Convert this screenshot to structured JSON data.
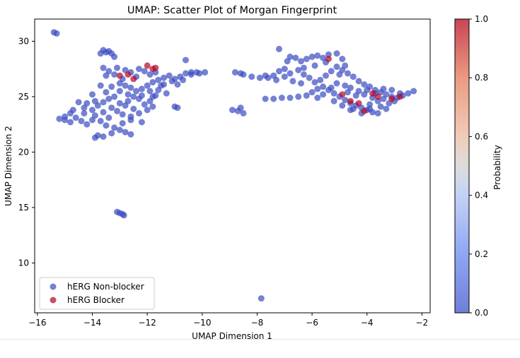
{
  "chart_data": {
    "type": "scatter",
    "title": "UMAP: Scatter Plot of Morgan Fingerprint",
    "xlabel": "UMAP Dimension 1",
    "ylabel": "UMAP Dimension 2",
    "xlim": [
      -16.1,
      -1.7
    ],
    "ylim": [
      5.5,
      32.0
    ],
    "x_ticks": [
      -16,
      -14,
      -12,
      -10,
      -8,
      -6,
      -4,
      -2
    ],
    "x_tick_labels": [
      "−16",
      "−14",
      "−12",
      "−10",
      "−8",
      "−6",
      "−4",
      "−2"
    ],
    "y_ticks": [
      10,
      15,
      20,
      25,
      30
    ],
    "y_tick_labels": [
      "10",
      "15",
      "20",
      "25",
      "30"
    ],
    "grid": false,
    "legend": {
      "position": "lower-left",
      "entries": [
        {
          "label": "hERG Non-blocker",
          "color": "#3b4cc0"
        },
        {
          "label": "hERG Blocker",
          "color": "#b40426"
        }
      ]
    },
    "colorbar": {
      "label": "Probability",
      "range": [
        0.0,
        1.0
      ],
      "ticks": [
        "0.0",
        "0.2",
        "0.4",
        "0.6",
        "0.8",
        "1.0"
      ],
      "colormap": "coolwarm"
    },
    "series": [
      {
        "name": "hERG Non-blocker",
        "color": "#3b4cc0",
        "points": [
          [
            -15.4,
            30.8
          ],
          [
            -15.3,
            30.7
          ],
          [
            -7.85,
            6.8
          ],
          [
            -13.1,
            14.6
          ],
          [
            -13.0,
            14.5
          ],
          [
            -12.9,
            14.4
          ],
          [
            -12.85,
            14.3
          ],
          [
            -10.6,
            28.3
          ],
          [
            -13.6,
            29.2
          ],
          [
            -13.5,
            29.0
          ],
          [
            -13.4,
            29.1
          ],
          [
            -13.3,
            28.9
          ],
          [
            -13.2,
            28.6
          ],
          [
            -13.7,
            28.9
          ],
          [
            -9.9,
            27.2
          ],
          [
            -10.1,
            27.1
          ],
          [
            -10.4,
            27.2
          ],
          [
            -8.8,
            27.2
          ],
          [
            -8.6,
            27.1
          ],
          [
            -8.5,
            27.0
          ],
          [
            -8.2,
            26.8
          ],
          [
            -7.9,
            26.7
          ],
          [
            -7.7,
            26.9
          ],
          [
            -10.9,
            24.0
          ],
          [
            -11.0,
            24.1
          ],
          [
            -8.9,
            23.8
          ],
          [
            -8.7,
            23.7
          ],
          [
            -8.6,
            24.0
          ],
          [
            -8.5,
            23.5
          ],
          [
            -15.2,
            23.0
          ],
          [
            -15.0,
            23.2
          ],
          [
            -14.8,
            23.5
          ],
          [
            -14.6,
            23.1
          ],
          [
            -14.4,
            22.8
          ],
          [
            -14.2,
            22.5
          ],
          [
            -14.0,
            22.9
          ],
          [
            -14.8,
            22.7
          ],
          [
            -14.3,
            23.5
          ],
          [
            -14.0,
            23.8
          ],
          [
            -13.8,
            24.2
          ],
          [
            -13.6,
            24.5
          ],
          [
            -13.9,
            24.6
          ],
          [
            -14.2,
            24.4
          ],
          [
            -14.5,
            24.5
          ],
          [
            -13.4,
            24.8
          ],
          [
            -13.2,
            25.0
          ],
          [
            -13.5,
            25.4
          ],
          [
            -13.3,
            25.9
          ],
          [
            -13.0,
            26.2
          ],
          [
            -12.8,
            26.0
          ],
          [
            -12.6,
            25.8
          ],
          [
            -12.4,
            25.5
          ],
          [
            -12.2,
            25.7
          ],
          [
            -12.0,
            26.0
          ],
          [
            -11.8,
            26.3
          ],
          [
            -11.6,
            26.5
          ],
          [
            -11.4,
            26.7
          ],
          [
            -11.2,
            26.9
          ],
          [
            -11.0,
            26.6
          ],
          [
            -10.8,
            26.8
          ],
          [
            -10.6,
            27.1
          ],
          [
            -11.5,
            26.0
          ],
          [
            -11.3,
            25.3
          ],
          [
            -11.8,
            25.0
          ],
          [
            -12.3,
            24.8
          ],
          [
            -12.7,
            24.6
          ],
          [
            -13.0,
            24.4
          ],
          [
            -13.3,
            24.0
          ],
          [
            -13.6,
            23.6
          ],
          [
            -13.9,
            23.3
          ],
          [
            -13.1,
            23.7
          ],
          [
            -12.9,
            23.4
          ],
          [
            -12.6,
            23.2
          ],
          [
            -12.3,
            23.5
          ],
          [
            -12.0,
            23.8
          ],
          [
            -11.8,
            24.1
          ],
          [
            -12.5,
            23.9
          ],
          [
            -12.8,
            24.2
          ],
          [
            -13.4,
            23.1
          ],
          [
            -13.7,
            22.8
          ],
          [
            -13.5,
            22.4
          ],
          [
            -13.2,
            22.2
          ],
          [
            -13.0,
            22.0
          ],
          [
            -12.8,
            21.8
          ],
          [
            -12.6,
            21.6
          ],
          [
            -13.3,
            21.7
          ],
          [
            -13.6,
            21.4
          ],
          [
            -13.9,
            21.3
          ],
          [
            -13.8,
            21.5
          ],
          [
            -12.9,
            22.6
          ],
          [
            -12.6,
            22.9
          ],
          [
            -12.2,
            22.7
          ],
          [
            -12.1,
            24.3
          ],
          [
            -11.9,
            24.6
          ],
          [
            -12.4,
            26.8
          ],
          [
            -12.6,
            27.2
          ],
          [
            -12.8,
            27.4
          ],
          [
            -13.1,
            27.6
          ],
          [
            -13.4,
            27.3
          ],
          [
            -13.2,
            27.0
          ],
          [
            -12.9,
            26.6
          ],
          [
            -12.3,
            27.5
          ],
          [
            -12.1,
            27.3
          ],
          [
            -11.9,
            27.0
          ],
          [
            -11.7,
            27.2
          ],
          [
            -13.6,
            27.6
          ],
          [
            -13.5,
            26.9
          ],
          [
            -13.7,
            26.0
          ],
          [
            -14.0,
            25.2
          ],
          [
            -14.3,
            24.0
          ],
          [
            -14.7,
            23.8
          ],
          [
            -15.0,
            22.9
          ],
          [
            -13.0,
            25.5
          ],
          [
            -12.7,
            25.2
          ],
          [
            -12.5,
            25.0
          ],
          [
            -12.2,
            25.1
          ],
          [
            -11.9,
            25.5
          ],
          [
            -11.6,
            25.6
          ],
          [
            -11.4,
            26.1
          ],
          [
            -11.1,
            26.4
          ],
          [
            -10.9,
            26.1
          ],
          [
            -10.7,
            26.5
          ],
          [
            -10.4,
            27.0
          ],
          [
            -10.2,
            27.2
          ],
          [
            -11.7,
            25.1
          ],
          [
            -7.2,
            29.3
          ],
          [
            -6.8,
            28.6
          ],
          [
            -6.6,
            28.5
          ],
          [
            -6.4,
            28.2
          ],
          [
            -6.2,
            28.4
          ],
          [
            -6.0,
            28.6
          ],
          [
            -5.8,
            28.7
          ],
          [
            -5.6,
            28.5
          ],
          [
            -5.4,
            28.8
          ],
          [
            -5.1,
            28.9
          ],
          [
            -4.9,
            28.4
          ],
          [
            -6.9,
            28.2
          ],
          [
            -7.0,
            27.5
          ],
          [
            -7.2,
            27.3
          ],
          [
            -7.4,
            26.9
          ],
          [
            -7.6,
            26.7
          ],
          [
            -7.3,
            26.5
          ],
          [
            -7.0,
            26.8
          ],
          [
            -6.8,
            27.1
          ],
          [
            -6.5,
            27.4
          ],
          [
            -6.3,
            27.0
          ],
          [
            -6.1,
            26.7
          ],
          [
            -5.9,
            26.3
          ],
          [
            -5.7,
            26.5
          ],
          [
            -5.5,
            26.9
          ],
          [
            -5.3,
            27.3
          ],
          [
            -5.1,
            27.7
          ],
          [
            -4.9,
            27.4
          ],
          [
            -4.7,
            27.1
          ],
          [
            -4.5,
            26.8
          ],
          [
            -4.3,
            26.4
          ],
          [
            -4.1,
            26.1
          ],
          [
            -3.9,
            25.9
          ],
          [
            -3.7,
            25.6
          ],
          [
            -3.5,
            25.4
          ],
          [
            -3.3,
            25.2
          ],
          [
            -3.1,
            25.0
          ],
          [
            -2.9,
            24.9
          ],
          [
            -2.7,
            25.1
          ],
          [
            -2.5,
            25.3
          ],
          [
            -2.3,
            25.5
          ],
          [
            -7.4,
            24.8
          ],
          [
            -7.1,
            24.9
          ],
          [
            -6.8,
            24.9
          ],
          [
            -6.5,
            25.0
          ],
          [
            -6.2,
            25.1
          ],
          [
            -6.0,
            25.4
          ],
          [
            -5.8,
            25.7
          ],
          [
            -5.6,
            25.9
          ],
          [
            -5.4,
            25.6
          ],
          [
            -5.2,
            25.3
          ],
          [
            -5.0,
            25.0
          ],
          [
            -4.8,
            24.7
          ],
          [
            -4.6,
            24.4
          ],
          [
            -4.4,
            24.2
          ],
          [
            -4.2,
            24.0
          ],
          [
            -4.0,
            23.8
          ],
          [
            -3.8,
            23.6
          ],
          [
            -3.6,
            23.5
          ],
          [
            -3.9,
            24.3
          ],
          [
            -3.6,
            24.6
          ],
          [
            -3.4,
            24.8
          ],
          [
            -3.2,
            24.4
          ],
          [
            -3.0,
            24.6
          ],
          [
            -3.3,
            23.9
          ],
          [
            -3.5,
            24.1
          ],
          [
            -3.8,
            24.9
          ],
          [
            -4.1,
            25.2
          ],
          [
            -4.3,
            25.5
          ],
          [
            -4.6,
            25.8
          ],
          [
            -4.8,
            26.0
          ],
          [
            -5.1,
            26.2
          ],
          [
            -5.3,
            25.8
          ],
          [
            -5.6,
            25.2
          ],
          [
            -5.8,
            24.9
          ],
          [
            -4.9,
            24.2
          ],
          [
            -4.5,
            23.9
          ],
          [
            -4.2,
            23.5
          ],
          [
            -4.0,
            25.6
          ],
          [
            -3.7,
            25.3
          ],
          [
            -3.4,
            25.7
          ],
          [
            -5.0,
            27.0
          ],
          [
            -4.8,
            27.8
          ],
          [
            -5.5,
            28.1
          ],
          [
            -5.9,
            27.8
          ],
          [
            -6.3,
            27.6
          ],
          [
            -6.7,
            26.4
          ],
          [
            -6.4,
            26.2
          ],
          [
            -7.7,
            24.8
          ],
          [
            -3.1,
            25.6
          ],
          [
            -2.8,
            25.3
          ],
          [
            -4.4,
            25.1
          ],
          [
            -4.7,
            25.4
          ],
          [
            -5.2,
            24.6
          ],
          [
            -3.9,
            23.9
          ],
          [
            -4.6,
            23.8
          ]
        ]
      },
      {
        "name": "hERG Blocker",
        "color": "#b40426",
        "points": [
          [
            -12.0,
            27.8
          ],
          [
            -11.8,
            27.5
          ],
          [
            -11.7,
            27.6
          ],
          [
            -12.7,
            27.0
          ],
          [
            -12.5,
            26.6
          ],
          [
            -13.0,
            26.9
          ],
          [
            -5.4,
            28.4
          ],
          [
            -4.9,
            25.2
          ],
          [
            -4.6,
            24.6
          ],
          [
            -4.3,
            24.4
          ],
          [
            -3.8,
            25.3
          ],
          [
            -3.1,
            24.8
          ],
          [
            -2.8,
            25.0
          ],
          [
            -3.6,
            25.0
          ],
          [
            -4.1,
            23.7
          ]
        ]
      }
    ]
  }
}
